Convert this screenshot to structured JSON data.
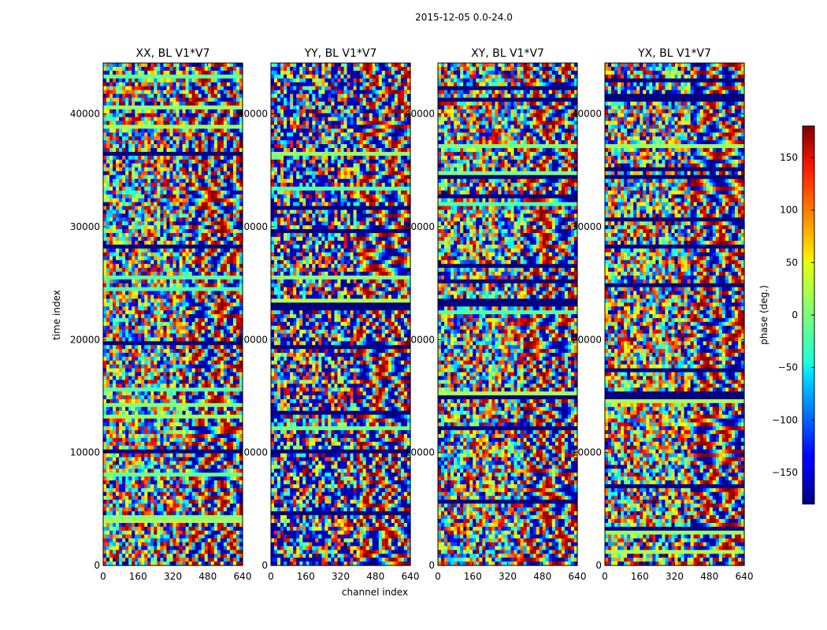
{
  "figure": {
    "suptitle": "2015-12-05 0.0-24.0"
  },
  "chart_data": {
    "type": "heatmap",
    "xlabel": "channel index",
    "ylabel": "time index",
    "xlim": [
      0,
      640
    ],
    "ylim": [
      0,
      44500
    ],
    "x_ticks": [
      0,
      160,
      320,
      480,
      640
    ],
    "y_ticks": [
      0,
      10000,
      20000,
      30000,
      40000
    ],
    "panels": [
      {
        "title": "XX, BL V1*V7"
      },
      {
        "title": "YY, BL V1*V7"
      },
      {
        "title": "XY, BL V1*V7"
      },
      {
        "title": "YX, BL V1*V7"
      }
    ],
    "colorbar": {
      "label": "phase (deg.)",
      "range": [
        -180,
        180
      ],
      "ticks": [
        -150,
        -100,
        -50,
        0,
        50,
        100,
        150
      ],
      "colormap": "jet"
    }
  }
}
